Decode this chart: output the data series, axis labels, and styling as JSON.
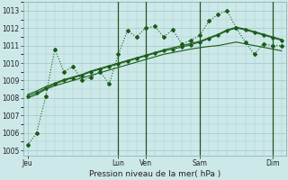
{
  "background_color": "#cce8e8",
  "grid_color": "#aacccc",
  "line_color": "#1a5c1a",
  "title": "Pression niveau de la mer( hPa )",
  "ylabel_ticks": [
    1005,
    1006,
    1007,
    1008,
    1009,
    1010,
    1011,
    1012,
    1013
  ],
  "ylim": [
    1004.7,
    1013.5
  ],
  "xlim": [
    -0.5,
    28.5
  ],
  "day_labels": [
    "Jeu",
    "Lun",
    "Ven",
    "Sam",
    "Dim"
  ],
  "day_positions": [
    0,
    10,
    13,
    19,
    27
  ],
  "vline_positions": [
    10,
    13,
    19,
    27
  ],
  "series1_x": [
    0,
    1,
    2,
    3,
    4,
    5,
    6,
    7,
    8,
    9,
    10,
    11,
    12,
    13,
    14,
    15,
    16,
    17,
    18,
    19,
    20,
    21,
    22,
    23,
    24,
    25,
    26,
    27,
    28
  ],
  "series1_y": [
    1005.3,
    1006.0,
    1008.1,
    1010.8,
    1009.5,
    1009.8,
    1009.0,
    1009.2,
    1009.5,
    1008.8,
    1010.5,
    1011.85,
    1011.5,
    1012.0,
    1012.1,
    1011.5,
    1011.9,
    1011.1,
    1011.3,
    1011.6,
    1012.4,
    1012.8,
    1013.0,
    1012.0,
    1011.2,
    1010.5,
    1011.1,
    1011.0,
    1011.0
  ],
  "series2_x": [
    0,
    1,
    2,
    3,
    4,
    5,
    6,
    7,
    8,
    9,
    10,
    11,
    12,
    13,
    14,
    15,
    16,
    17,
    18,
    19,
    20,
    21,
    22,
    23,
    24,
    25,
    26,
    27,
    28
  ],
  "series2_y": [
    1008.0,
    1008.2,
    1008.5,
    1008.7,
    1008.85,
    1009.0,
    1009.15,
    1009.3,
    1009.45,
    1009.6,
    1009.75,
    1009.9,
    1010.05,
    1010.2,
    1010.35,
    1010.5,
    1010.6,
    1010.7,
    1010.8,
    1010.88,
    1010.95,
    1011.0,
    1011.1,
    1011.2,
    1011.1,
    1011.0,
    1010.9,
    1010.8,
    1010.7
  ],
  "series3_x": [
    0,
    1,
    2,
    3,
    4,
    5,
    6,
    7,
    8,
    9,
    10,
    11,
    12,
    13,
    14,
    15,
    16,
    17,
    18,
    19,
    20,
    21,
    22,
    23,
    24,
    25,
    26,
    27,
    28
  ],
  "series3_y": [
    1008.1,
    1008.3,
    1008.55,
    1008.8,
    1009.0,
    1009.15,
    1009.3,
    1009.5,
    1009.65,
    1009.8,
    1009.95,
    1010.1,
    1010.25,
    1010.4,
    1010.55,
    1010.7,
    1010.8,
    1010.92,
    1011.05,
    1011.2,
    1011.4,
    1011.6,
    1011.85,
    1012.0,
    1011.9,
    1011.75,
    1011.6,
    1011.45,
    1011.3
  ],
  "series4_x": [
    0,
    1,
    2,
    3,
    4,
    5,
    6,
    7,
    8,
    9,
    10,
    11,
    12,
    13,
    14,
    15,
    16,
    17,
    18,
    19,
    20,
    21,
    22,
    23,
    24,
    25,
    26,
    27,
    28
  ],
  "series4_y": [
    1008.2,
    1008.4,
    1008.65,
    1008.85,
    1009.05,
    1009.2,
    1009.35,
    1009.55,
    1009.7,
    1009.85,
    1010.0,
    1010.15,
    1010.3,
    1010.45,
    1010.6,
    1010.75,
    1010.88,
    1011.0,
    1011.12,
    1011.25,
    1011.45,
    1011.65,
    1011.9,
    1012.05,
    1011.95,
    1011.8,
    1011.65,
    1011.5,
    1011.35
  ]
}
